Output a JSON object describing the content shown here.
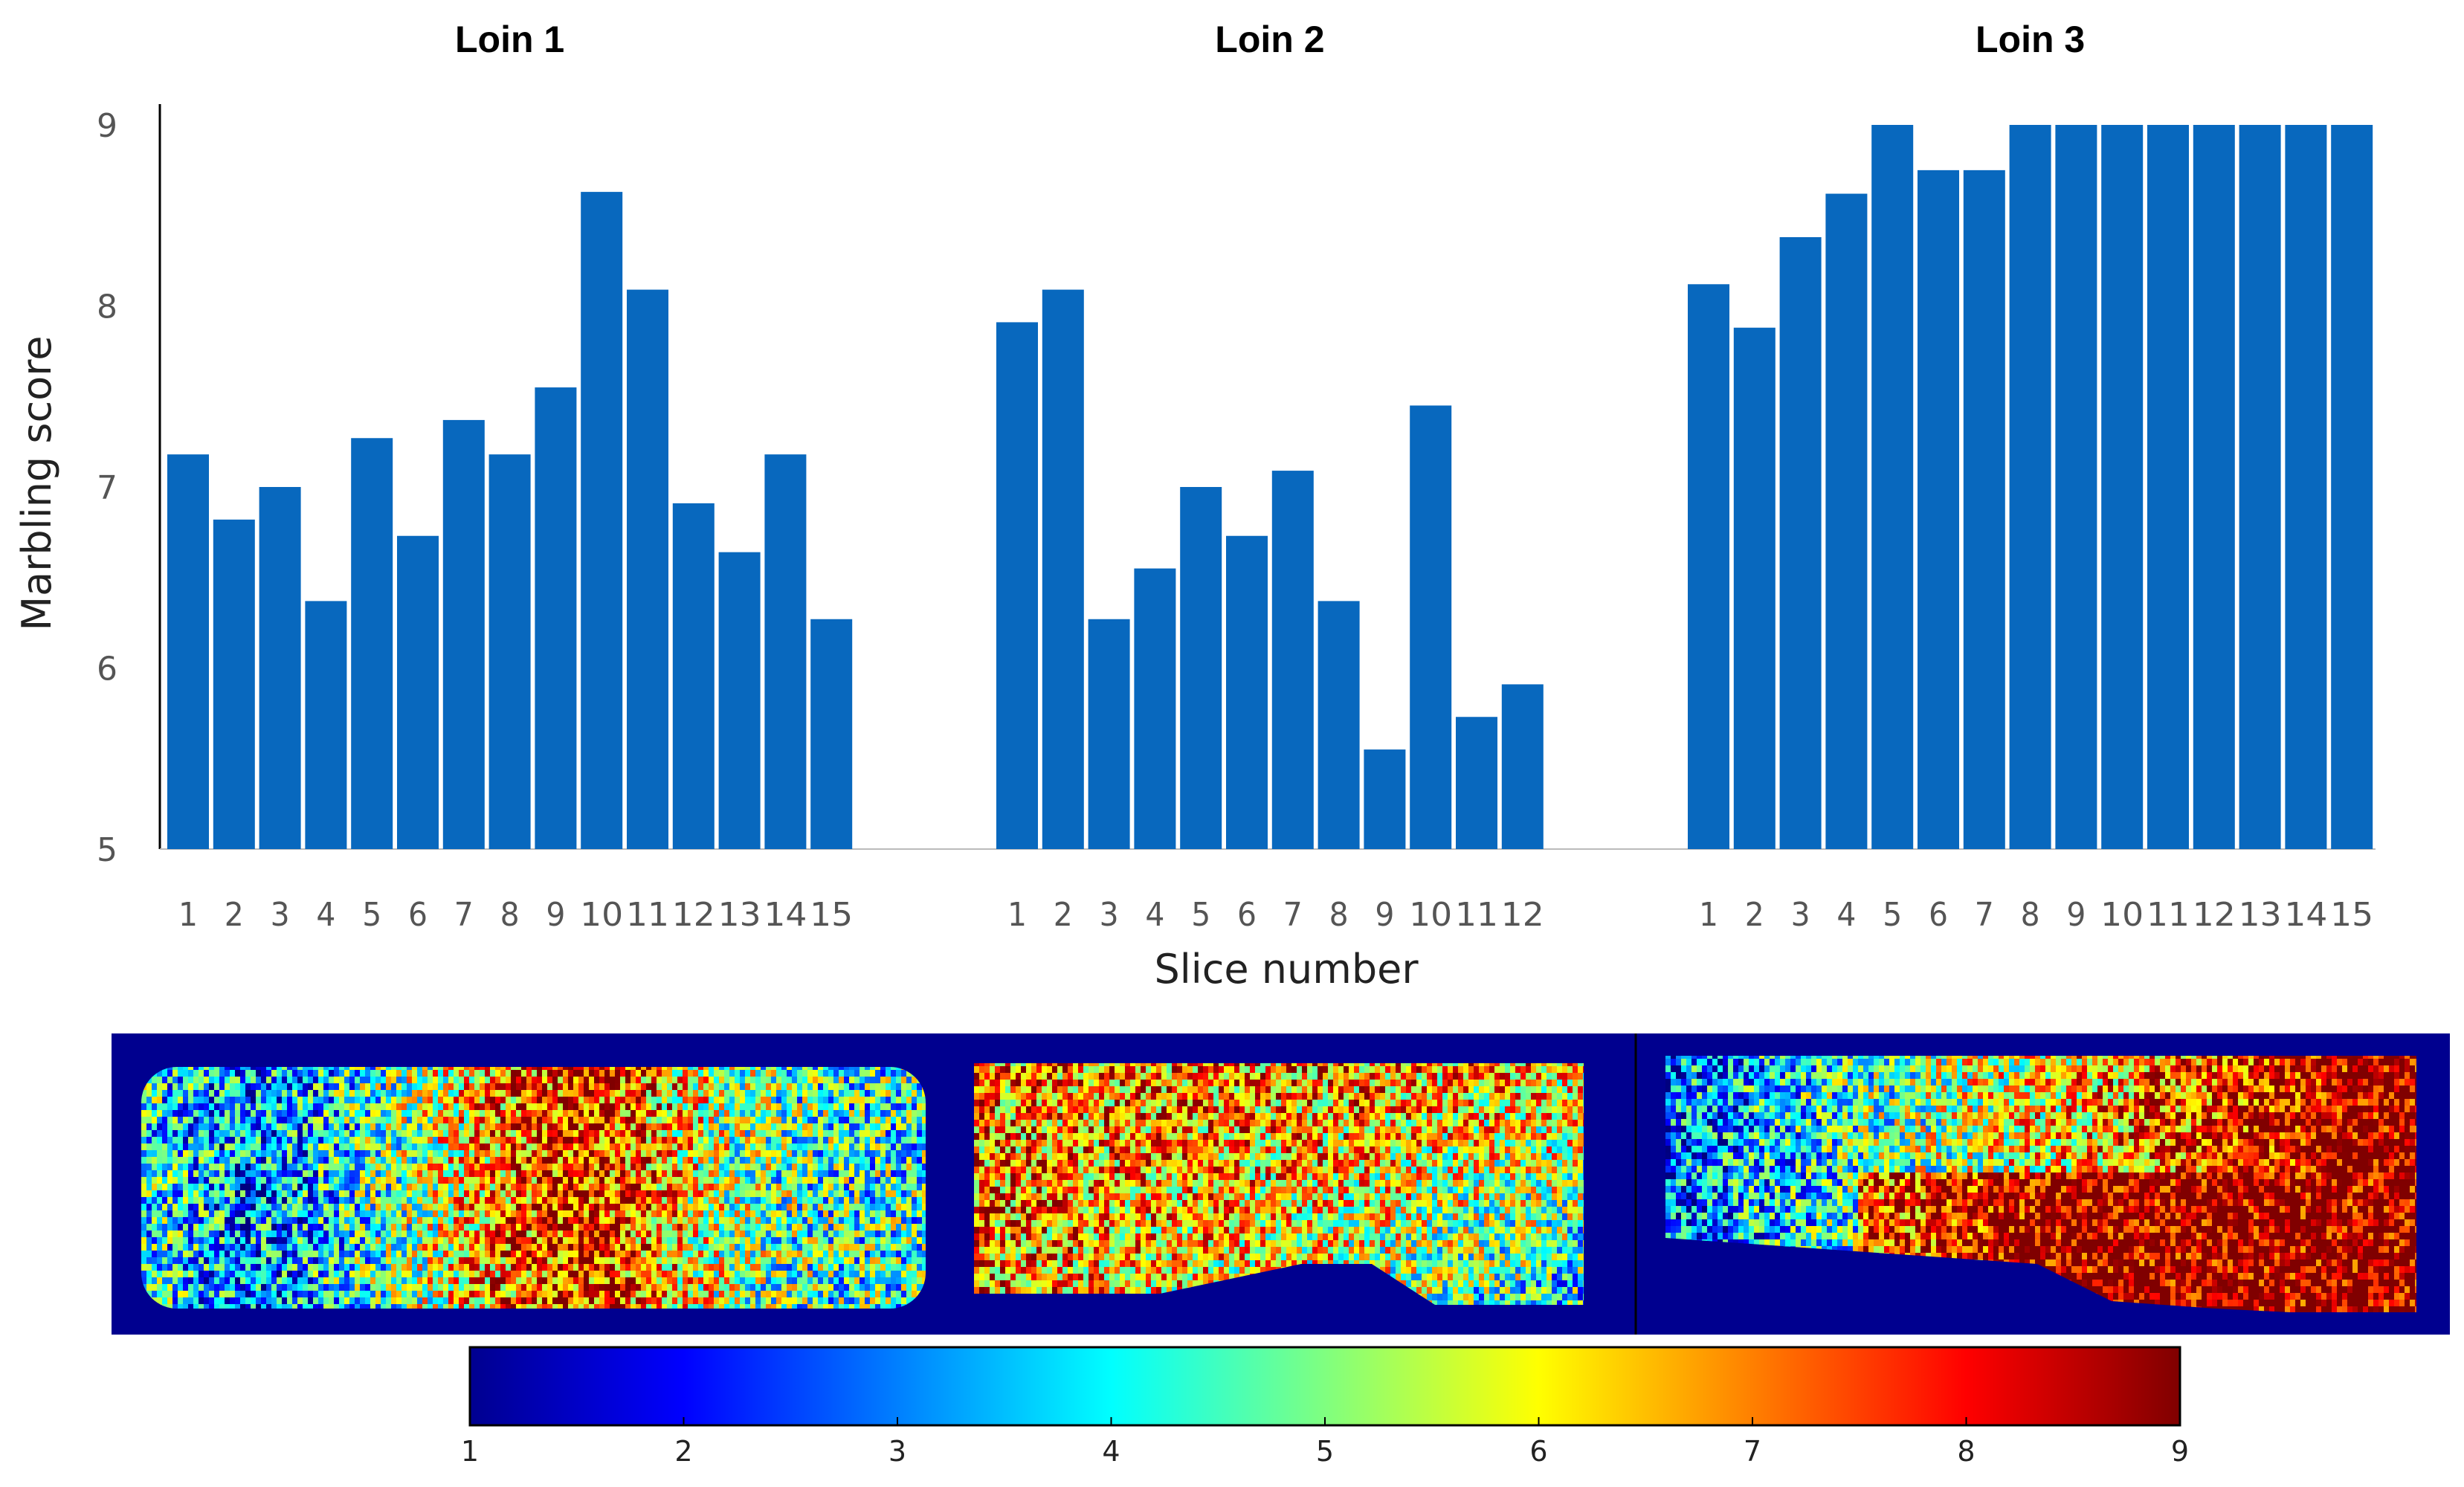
{
  "chart_data": [
    {
      "type": "bar",
      "ylabel": "Marbling score",
      "xlabel": "Slice number",
      "ylim": [
        5,
        9
      ],
      "yticks": [
        "5",
        "6",
        "7",
        "8",
        "9"
      ],
      "bar_color": "#0868BE",
      "groups": [
        {
          "title": "Loin 1",
          "categories": [
            "1",
            "2",
            "3",
            "4",
            "5",
            "6",
            "7",
            "8",
            "9",
            "10",
            "11",
            "12",
            "13",
            "14",
            "15"
          ],
          "values": [
            7.18,
            6.82,
            7.0,
            6.37,
            7.27,
            6.73,
            7.37,
            7.18,
            7.55,
            8.63,
            8.09,
            6.91,
            6.64,
            7.18,
            6.27
          ]
        },
        {
          "title": "Loin 2",
          "categories": [
            "1",
            "2",
            "3",
            "4",
            "5",
            "6",
            "7",
            "8",
            "9",
            "10",
            "11",
            "12"
          ],
          "values": [
            7.91,
            8.09,
            6.27,
            6.55,
            7.0,
            6.73,
            7.09,
            6.37,
            5.55,
            7.45,
            5.73,
            5.91
          ]
        },
        {
          "title": "Loin 3",
          "categories": [
            "1",
            "2",
            "3",
            "4",
            "5",
            "6",
            "7",
            "8",
            "9",
            "10",
            "11",
            "12",
            "13",
            "14",
            "15"
          ],
          "values": [
            8.12,
            7.88,
            8.38,
            8.62,
            9.0,
            8.75,
            8.75,
            9.0,
            9.0,
            9.0,
            9.0,
            9.0,
            9.0,
            9.0,
            9.0
          ]
        }
      ]
    },
    {
      "type": "heatmap",
      "colormap": "jet",
      "colorbar_range": [
        1,
        9
      ],
      "colorbar_ticks": [
        "1",
        "2",
        "3",
        "4",
        "5",
        "6",
        "7",
        "8",
        "9"
      ],
      "background_color": "#00008F"
    }
  ]
}
